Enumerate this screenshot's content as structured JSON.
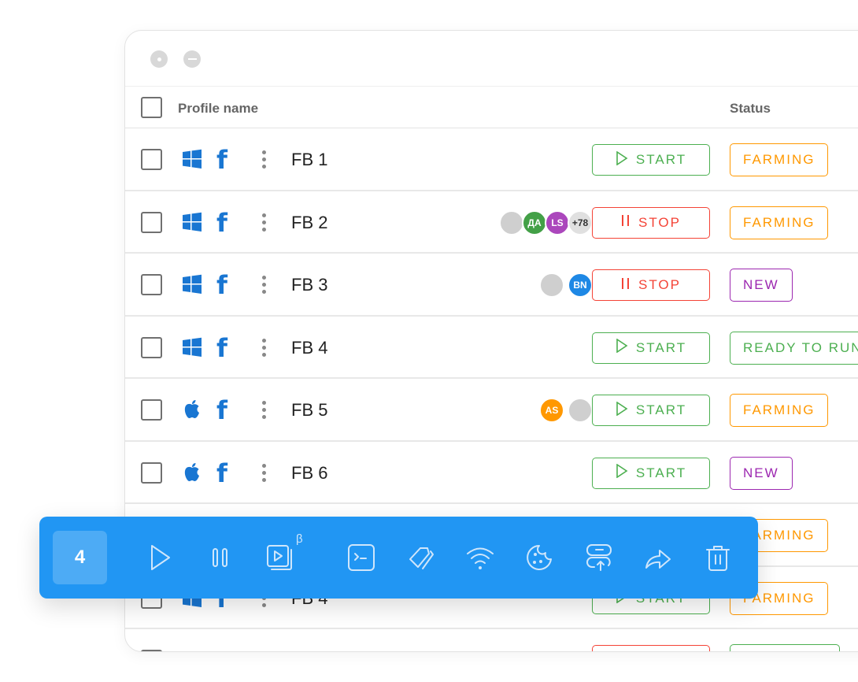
{
  "header": {
    "profile_name": "Profile name",
    "status": "Status"
  },
  "rows": [
    {
      "name": "FB 1",
      "os": "windows-icon",
      "avatars": [],
      "action": "START",
      "status": "FARMING"
    },
    {
      "name": "FB 2",
      "os": "windows-icon",
      "avatars": [
        "photo",
        "ДА",
        "LS",
        "+78"
      ],
      "action": "STOP",
      "status": "FARMING"
    },
    {
      "name": "FB 3",
      "os": "windows-icon",
      "avatars": [
        "photo",
        "BN"
      ],
      "action": "STOP",
      "status": "NEW"
    },
    {
      "name": "FB 4",
      "os": "windows-icon",
      "avatars": [],
      "action": "START",
      "status": "READY TO RUN"
    },
    {
      "name": "FB 5",
      "os": "apple-icon",
      "avatars": [
        "AS",
        "photo"
      ],
      "action": "START",
      "status": "FARMING"
    },
    {
      "name": "FB 6",
      "os": "apple-icon",
      "avatars": [],
      "action": "START",
      "status": "NEW"
    },
    {
      "name": "",
      "os": "windows-icon",
      "avatars": [],
      "action": "",
      "status": "FARMING"
    },
    {
      "name": "FB 4",
      "os": "windows-icon",
      "avatars": [],
      "action": "START",
      "status": "FARMING"
    }
  ],
  "colors": {
    "accent": "#2196F3",
    "start": "#4CAF50",
    "stop": "#F44336",
    "farming": "#FF9800",
    "new": "#9C27B0",
    "ready": "#4CAF50",
    "facebook": "#1976D2"
  },
  "toolbar": {
    "selected_count": "4",
    "beta_mark": "β",
    "actions": [
      "play-icon",
      "pause-icon",
      "video-icon",
      "terminal-icon",
      "tag-icon",
      "wifi-icon",
      "cookie-icon",
      "upload-server-icon",
      "share-icon",
      "trash-icon"
    ]
  }
}
